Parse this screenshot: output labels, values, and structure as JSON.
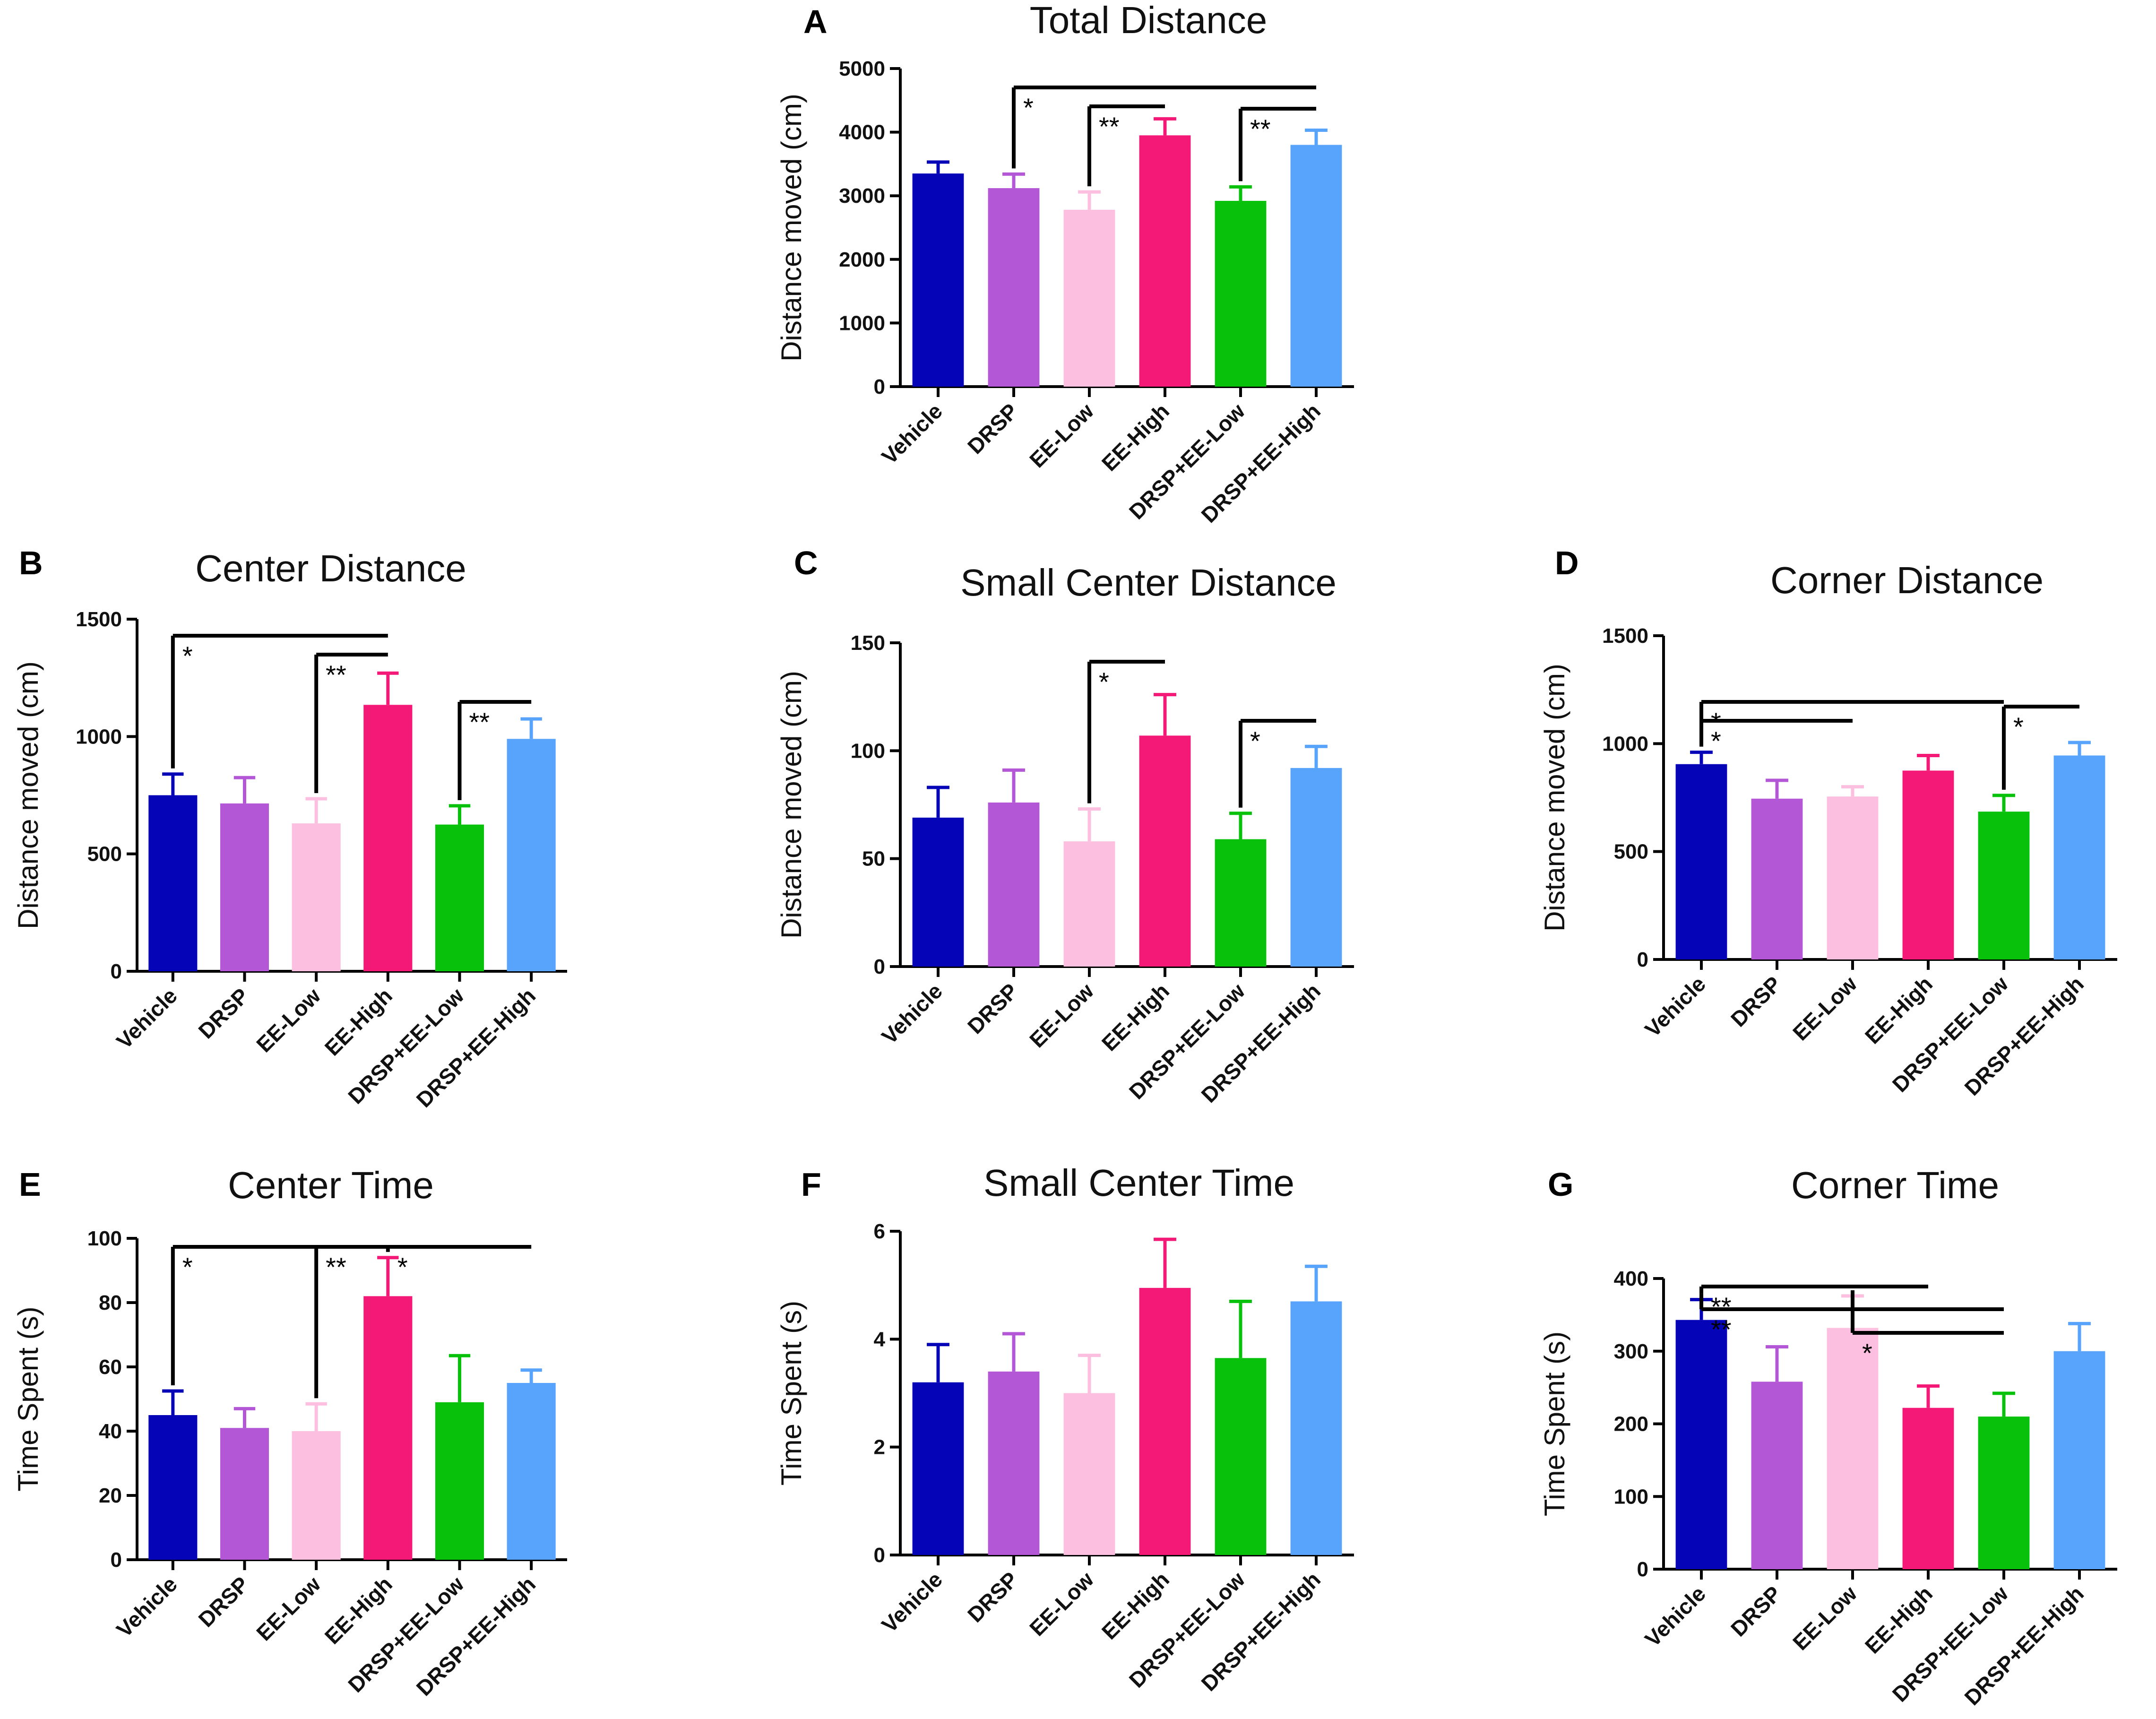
{
  "figure": {
    "colors": [
      "#0505b7",
      "#b357d6",
      "#fdbfdf",
      "#f41877",
      "#08c10b",
      "#58a4fc"
    ],
    "categories": [
      "Vehicle",
      "DRSP",
      "EE-Low",
      "EE-High",
      "DRSP+EE-Low",
      "DRSP+EE-High"
    ]
  },
  "chart_data": [
    {
      "id": "A",
      "letter": "A",
      "type": "bar",
      "title": "Total Distance",
      "xlabel": "",
      "ylabel": "Distance moved (cm)",
      "ylim": [
        0,
        5000
      ],
      "yticks": [
        0,
        1000,
        2000,
        3000,
        4000,
        5000
      ],
      "categories": [
        "Vehicle",
        "DRSP",
        "EE-Low",
        "EE-High",
        "DRSP+EE-Low",
        "DRSP+EE-High"
      ],
      "values": [
        3350,
        3120,
        2780,
        3950,
        2920,
        3800
      ],
      "errors": [
        180,
        220,
        280,
        260,
        220,
        230
      ],
      "significance": [
        {
          "from": 1,
          "to": 5,
          "label": "*"
        },
        {
          "from": 2,
          "to": 3,
          "label": "**"
        },
        {
          "from": 4,
          "to": 5,
          "label": "**"
        }
      ]
    },
    {
      "id": "B",
      "letter": "B",
      "type": "bar",
      "title": "Center Distance",
      "xlabel": "",
      "ylabel": "Distance moved (cm)",
      "ylim": [
        0,
        1500
      ],
      "yticks": [
        0,
        500,
        1000,
        1500
      ],
      "categories": [
        "Vehicle",
        "DRSP",
        "EE-Low",
        "EE-High",
        "DRSP+EE-Low",
        "DRSP+EE-High"
      ],
      "values": [
        750,
        715,
        630,
        1135,
        625,
        990
      ],
      "errors": [
        90,
        110,
        105,
        135,
        80,
        85
      ],
      "significance": [
        {
          "from": 0,
          "to": 3,
          "label": "*"
        },
        {
          "from": 2,
          "to": 3,
          "label": "**"
        },
        {
          "from": 4,
          "to": 5,
          "label": "**"
        }
      ]
    },
    {
      "id": "C",
      "letter": "C",
      "type": "bar",
      "title": "Small Center Distance",
      "xlabel": "",
      "ylabel": "Distance moved (cm)",
      "ylim": [
        0,
        150
      ],
      "yticks": [
        0,
        50,
        100,
        150
      ],
      "categories": [
        "Vehicle",
        "DRSP",
        "EE-Low",
        "EE-High",
        "DRSP+EE-Low",
        "DRSP+EE-High"
      ],
      "values": [
        69,
        76,
        58,
        107,
        59,
        92
      ],
      "errors": [
        14,
        15,
        15,
        19,
        12,
        10
      ],
      "significance": [
        {
          "from": 2,
          "to": 3,
          "label": "*"
        },
        {
          "from": 4,
          "to": 5,
          "label": "*"
        }
      ]
    },
    {
      "id": "D",
      "letter": "D",
      "type": "bar",
      "title": "Corner Distance",
      "xlabel": "",
      "ylabel": "Distance moved (cm)",
      "ylim": [
        0,
        1500
      ],
      "yticks": [
        0,
        500,
        1000,
        1500
      ],
      "categories": [
        "Vehicle",
        "DRSP",
        "EE-Low",
        "EE-High",
        "DRSP+EE-Low",
        "DRSP+EE-High"
      ],
      "values": [
        905,
        745,
        755,
        875,
        685,
        945
      ],
      "errors": [
        55,
        85,
        45,
        70,
        75,
        60
      ],
      "significance": [
        {
          "from": 0,
          "to": 4,
          "label": "*"
        },
        {
          "from": 0,
          "to": 2,
          "label": "*"
        },
        {
          "from": 4,
          "to": 5,
          "label": "*"
        }
      ]
    },
    {
      "id": "E",
      "letter": "E",
      "type": "bar",
      "title": "Center Time",
      "xlabel": "",
      "ylabel": "Time Spent (s)",
      "ylim": [
        0,
        100
      ],
      "yticks": [
        0,
        20,
        40,
        60,
        80,
        100
      ],
      "categories": [
        "Vehicle",
        "DRSP",
        "EE-Low",
        "EE-High",
        "DRSP+EE-Low",
        "DRSP+EE-High"
      ],
      "values": [
        45,
        41,
        40,
        82,
        49,
        55
      ],
      "errors": [
        7.5,
        6,
        8.5,
        12,
        14.5,
        4
      ],
      "significance": [
        {
          "from": 0,
          "to": 3,
          "label": "*"
        },
        {
          "from": 2,
          "to": 3,
          "label": "**"
        },
        {
          "from": 3,
          "to": 5,
          "label": "*"
        }
      ]
    },
    {
      "id": "F",
      "letter": "F",
      "type": "bar",
      "title": "Small Center Time",
      "xlabel": "",
      "ylabel": "Time Spent (s)",
      "ylim": [
        0,
        6
      ],
      "yticks": [
        0,
        2,
        4,
        6
      ],
      "categories": [
        "Vehicle",
        "DRSP",
        "EE-Low",
        "EE-High",
        "DRSP+EE-Low",
        "DRSP+EE-High"
      ],
      "values": [
        3.2,
        3.4,
        3.0,
        4.95,
        3.65,
        4.7
      ],
      "errors": [
        0.7,
        0.7,
        0.7,
        0.9,
        1.05,
        0.65
      ],
      "significance": []
    },
    {
      "id": "G",
      "letter": "G",
      "type": "bar",
      "title": "Corner Time",
      "xlabel": "",
      "ylabel": "Time Spent (s)",
      "ylim": [
        0,
        400
      ],
      "yticks": [
        0,
        100,
        200,
        300,
        400
      ],
      "categories": [
        "Vehicle",
        "DRSP",
        "EE-Low",
        "EE-High",
        "DRSP+EE-Low",
        "DRSP+EE-High"
      ],
      "values": [
        343,
        258,
        332,
        222,
        210,
        300
      ],
      "errors": [
        28,
        48,
        44,
        30,
        32,
        38
      ],
      "significance": [
        {
          "from": 0,
          "to": 3,
          "label": "**"
        },
        {
          "from": 0,
          "to": 4,
          "label": "**"
        },
        {
          "from": 2,
          "to": 4,
          "label": "*"
        }
      ]
    }
  ]
}
